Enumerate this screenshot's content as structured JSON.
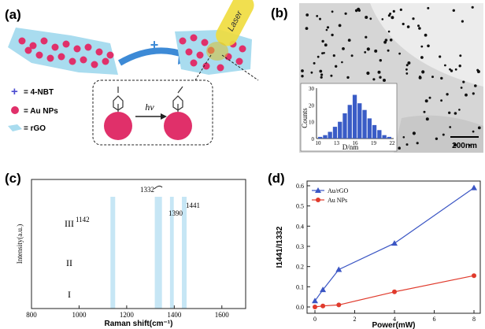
{
  "figure": {
    "panel_a": {
      "label": "(a)",
      "laser_label": "Laser",
      "hv_label": "hν",
      "plus_symbol": "+",
      "legend": [
        {
          "symbol": "+",
          "text": "= 4-NBT"
        },
        {
          "symbol": "circle",
          "text": "= Au NPs"
        },
        {
          "symbol": "sheet",
          "text": "= rGO"
        }
      ]
    },
    "panel_b": {
      "label": "(b)",
      "scale_bar": "200nm",
      "inset": {
        "xlabel": "D/nm",
        "ylabel": "Counts",
        "xticks": [
          "10",
          "13",
          "16",
          "19",
          "22"
        ],
        "yticks": [
          "0",
          "10",
          "20",
          "30"
        ]
      }
    },
    "panel_c": {
      "label": "(c)",
      "xlabel": "Raman shift(cm⁻¹)",
      "ylabel": "Intensity(a.u.)",
      "xticks": [
        "800",
        "1000",
        "1200",
        "1400",
        "1600"
      ],
      "peak_labels": [
        "1142",
        "1332",
        "1390",
        "1441"
      ],
      "trace_labels": [
        "III",
        "II",
        "I"
      ]
    },
    "panel_d": {
      "label": "(d)",
      "xlabel": "Power(mW)",
      "ylabel": "I1441/I1332",
      "xticks": [
        "0",
        "2",
        "4",
        "6",
        "8"
      ],
      "yticks": [
        "0.0",
        "0.1",
        "0.2",
        "0.3",
        "0.4",
        "0.5",
        "0.6"
      ]
    },
    "colors": {
      "rgo_sheet": "#a9dcef",
      "au_np": "#e0306a",
      "arrow": "#3d8ad6",
      "laser": "#f0dc3c",
      "trace_III": "#e05040",
      "trace_II": "#222222",
      "trace_I": "#2a4aa0",
      "highlight": "#a8d8f0",
      "au_rgo_series": "#3b56c4",
      "au_nps_series": "#e03a2c"
    }
  },
  "chart_data": [
    {
      "type": "bar",
      "panel": "b-inset",
      "xlabel": "D/nm",
      "ylabel": "Counts",
      "categories": [
        "10",
        "10.8",
        "11.6",
        "12.4",
        "13.2",
        "14",
        "14.8",
        "15.6",
        "16.4",
        "17.2",
        "18",
        "18.8",
        "19.6",
        "20.4",
        "21.2"
      ],
      "values": [
        1,
        2,
        4,
        7,
        10,
        15,
        20,
        26,
        21,
        17,
        12,
        8,
        5,
        2,
        1
      ],
      "ylim": [
        0,
        30
      ]
    },
    {
      "type": "line",
      "panel": "d",
      "xlabel": "Power(mW)",
      "ylabel": "I1441/I1332",
      "xlim": [
        0,
        8
      ],
      "ylim": [
        0,
        0.6
      ],
      "series": [
        {
          "name": "Au/rGO",
          "x": [
            0,
            0.4,
            1.2,
            4,
            8
          ],
          "y": [
            0.03,
            0.085,
            0.185,
            0.315,
            0.59
          ]
        },
        {
          "name": "Au NPs",
          "x": [
            0,
            0.4,
            1.2,
            4,
            8
          ],
          "y": [
            0.0,
            0.005,
            0.01,
            0.075,
            0.155
          ]
        }
      ]
    }
  ]
}
